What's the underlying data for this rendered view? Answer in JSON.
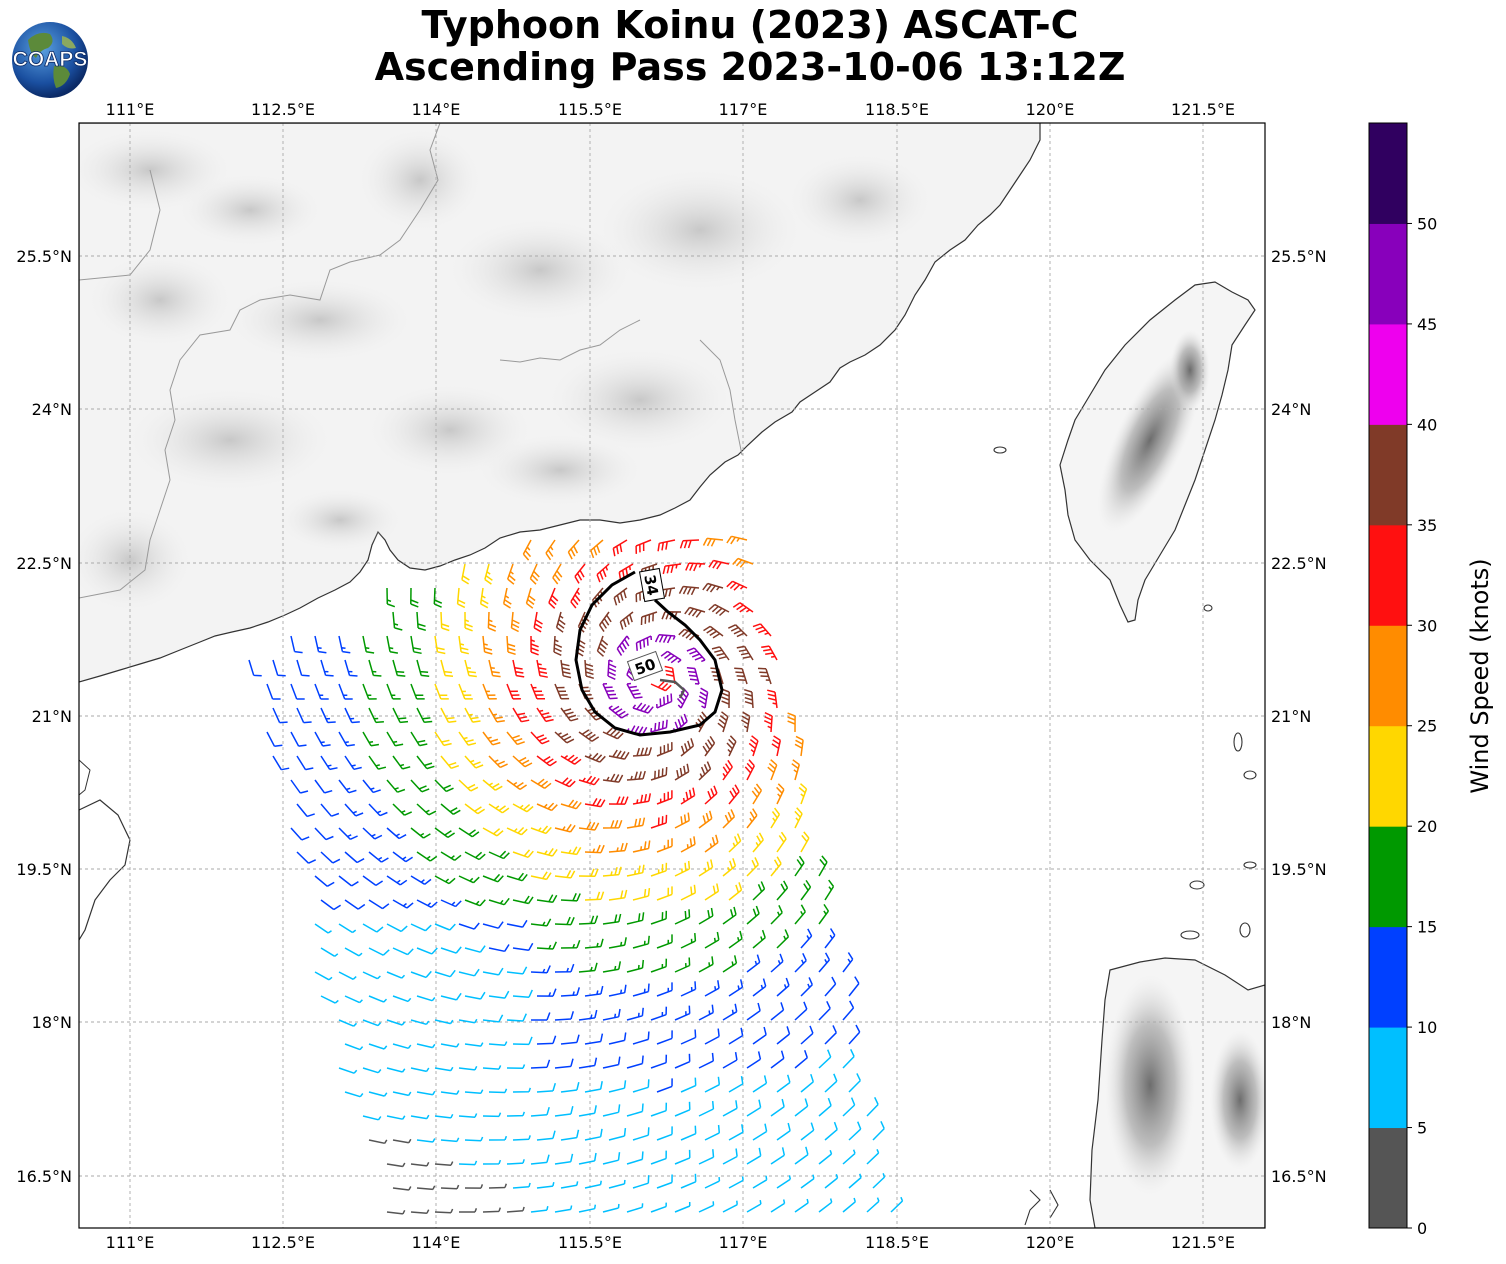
{
  "title": {
    "line1": "Typhoon Koinu (2023) ASCAT-C",
    "line2": "Ascending Pass 2023-10-06 13:12Z"
  },
  "logo": {
    "text": "COAPS",
    "icon": "coaps-globe-logo"
  },
  "map": {
    "lon_labels": [
      "111°E",
      "112.5°E",
      "114°E",
      "115.5°E",
      "117°E",
      "118.5°E",
      "120°E",
      "121.5°E"
    ],
    "lat_labels": [
      "25.5°N",
      "24°N",
      "22.5°N",
      "21°N",
      "19.5°N",
      "18°N",
      "16.5°N"
    ],
    "extent": {
      "lon_min": 110.45,
      "lon_max": 122.05,
      "lat_min": 15.95,
      "lat_max": 26.75
    },
    "contours": [
      {
        "label": "34",
        "color": "#000000"
      },
      {
        "label": "50",
        "color": "#555555"
      }
    ]
  },
  "colorbar": {
    "label": "Wind Speed (knots)",
    "ticks": [
      "0",
      "5",
      "10",
      "15",
      "20",
      "25",
      "30",
      "35",
      "40",
      "45",
      "50"
    ],
    "colors": [
      "#555555",
      "#00bfff",
      "#0040ff",
      "#009900",
      "#ffd700",
      "#ff8c00",
      "#ff1010",
      "#803a28",
      "#ee00ee",
      "#8800bb",
      "#300060"
    ]
  }
}
